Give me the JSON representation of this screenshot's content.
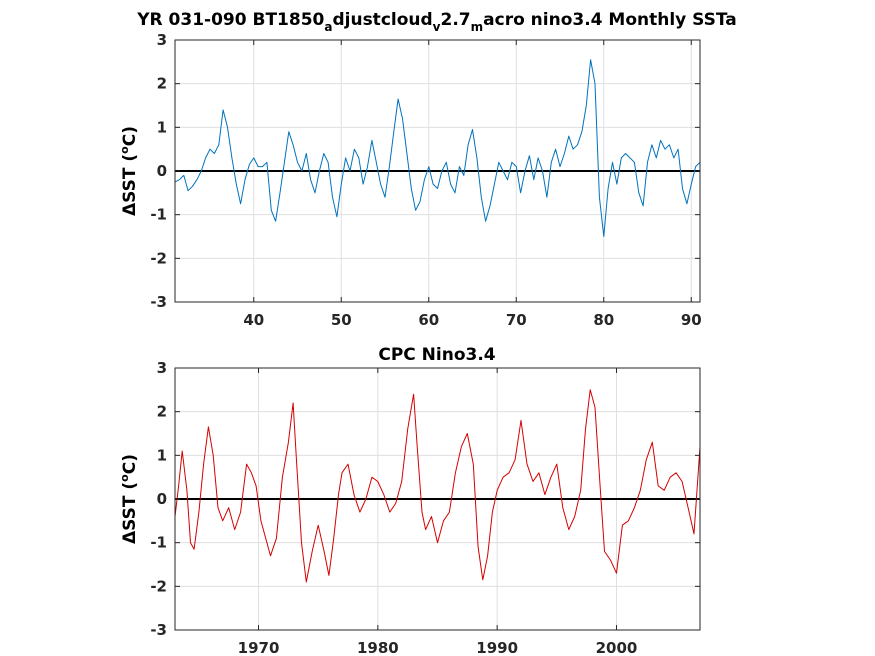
{
  "chart_data": [
    {
      "type": "line",
      "title": {
        "prefix": "YR 031-090 BT1850",
        "sub1": "a",
        "mid1": "djustcloud",
        "sub2": "v",
        "mid2": "2.7",
        "sub3": "m",
        "suffix": "acro nino3.4 Monthly SSTa"
      },
      "xlabel": "",
      "ylabel": "ΔSST (°C)",
      "ylabel_parts": [
        "ΔSST (",
        "o",
        "C)"
      ],
      "xlim": [
        31,
        91
      ],
      "ylim": [
        -3,
        3
      ],
      "xticks": [
        40,
        50,
        60,
        70,
        80,
        90
      ],
      "xtick_labels": [
        "40",
        "50",
        "60",
        "70",
        "80",
        "90"
      ],
      "yticks": [
        -3,
        -2,
        -1,
        0,
        1,
        2,
        3
      ],
      "ytick_labels": [
        "-3",
        "-2",
        "-1",
        "0",
        "1",
        "2",
        "3"
      ],
      "grid": true,
      "zero_line": true,
      "series": [
        {
          "color": "#0072bd",
          "x": [
            31.0,
            31.5,
            32.0,
            32.5,
            33.0,
            33.5,
            34.0,
            34.5,
            35.0,
            35.5,
            36.0,
            36.5,
            37.0,
            37.5,
            38.0,
            38.5,
            39.0,
            39.5,
            40.0,
            40.5,
            41.0,
            41.5,
            42.0,
            42.5,
            43.0,
            43.5,
            44.0,
            44.5,
            45.0,
            45.5,
            46.0,
            46.5,
            47.0,
            47.5,
            48.0,
            48.5,
            49.0,
            49.5,
            50.0,
            50.5,
            51.0,
            51.5,
            52.0,
            52.5,
            53.0,
            53.5,
            54.0,
            54.5,
            55.0,
            55.5,
            56.0,
            56.5,
            57.0,
            57.5,
            58.0,
            58.5,
            59.0,
            59.5,
            60.0,
            60.5,
            61.0,
            61.5,
            62.0,
            62.5,
            63.0,
            63.5,
            64.0,
            64.5,
            65.0,
            65.5,
            66.0,
            66.5,
            67.0,
            67.5,
            68.0,
            68.5,
            69.0,
            69.5,
            70.0,
            70.5,
            71.0,
            71.5,
            72.0,
            72.5,
            73.0,
            73.5,
            74.0,
            74.5,
            75.0,
            75.5,
            76.0,
            76.5,
            77.0,
            77.5,
            78.0,
            78.5,
            79.0,
            79.5,
            80.0,
            80.5,
            81.0,
            81.5,
            82.0,
            82.5,
            83.0,
            83.5,
            84.0,
            84.5,
            85.0,
            85.5,
            86.0,
            86.5,
            87.0,
            87.5,
            88.0,
            88.5,
            89.0,
            89.5,
            90.0,
            90.5,
            91.0
          ],
          "y": [
            -0.25,
            -0.2,
            -0.1,
            -0.45,
            -0.35,
            -0.2,
            0.0,
            0.3,
            0.5,
            0.4,
            0.6,
            1.4,
            1.0,
            0.3,
            -0.3,
            -0.75,
            -0.2,
            0.15,
            0.3,
            0.1,
            0.1,
            0.2,
            -0.9,
            -1.15,
            -0.5,
            0.2,
            0.9,
            0.6,
            0.2,
            0.0,
            0.4,
            -0.2,
            -0.5,
            0.0,
            0.4,
            0.2,
            -0.6,
            -1.05,
            -0.3,
            0.3,
            0.0,
            0.5,
            0.3,
            -0.3,
            0.1,
            0.7,
            0.2,
            -0.3,
            -0.6,
            0.1,
            0.9,
            1.65,
            1.2,
            0.4,
            -0.4,
            -0.9,
            -0.7,
            -0.2,
            0.1,
            -0.3,
            -0.4,
            0.0,
            0.2,
            -0.3,
            -0.5,
            0.1,
            -0.1,
            0.6,
            0.95,
            0.3,
            -0.6,
            -1.15,
            -0.8,
            -0.3,
            0.2,
            0.0,
            -0.2,
            0.2,
            0.1,
            -0.5,
            0.0,
            0.35,
            -0.2,
            0.3,
            0.0,
            -0.6,
            0.2,
            0.5,
            0.1,
            0.4,
            0.8,
            0.5,
            0.6,
            0.9,
            1.5,
            2.55,
            2.0,
            -0.6,
            -1.5,
            -0.4,
            0.2,
            -0.3,
            0.3,
            0.4,
            0.3,
            0.2,
            -0.5,
            -0.8,
            0.2,
            0.6,
            0.3,
            0.7,
            0.5,
            0.6,
            0.3,
            0.5,
            -0.4,
            -0.75,
            -0.3,
            0.1,
            0.2
          ]
        }
      ]
    },
    {
      "type": "line",
      "title": "CPC Nino3.4",
      "xlabel": "",
      "ylabel": "ΔSST (°C)",
      "ylabel_parts": [
        "ΔSST (",
        "o",
        "C)"
      ],
      "xlim": [
        1963,
        2007
      ],
      "ylim": [
        -3,
        3
      ],
      "xticks": [
        1970,
        1980,
        1990,
        2000
      ],
      "xtick_labels": [
        "1970",
        "1980",
        "1990",
        "2000"
      ],
      "yticks": [
        -3,
        -2,
        -1,
        0,
        1,
        2,
        3
      ],
      "ytick_labels": [
        "-3",
        "-2",
        "-1",
        "0",
        "1",
        "2",
        "3"
      ],
      "grid": true,
      "zero_line": true,
      "series": [
        {
          "color": "#d40000",
          "x": [
            1963.0,
            1963.3,
            1963.6,
            1964.0,
            1964.3,
            1964.6,
            1965.0,
            1965.4,
            1965.8,
            1966.2,
            1966.6,
            1967.0,
            1967.5,
            1968.0,
            1968.5,
            1969.0,
            1969.4,
            1969.8,
            1970.2,
            1970.6,
            1971.0,
            1971.5,
            1972.0,
            1972.5,
            1972.9,
            1973.2,
            1973.6,
            1974.0,
            1974.5,
            1975.0,
            1975.5,
            1975.9,
            1976.3,
            1976.7,
            1977.0,
            1977.5,
            1978.0,
            1978.5,
            1979.0,
            1979.5,
            1980.0,
            1980.5,
            1981.0,
            1981.5,
            1982.0,
            1982.5,
            1983.0,
            1983.3,
            1983.7,
            1984.0,
            1984.5,
            1985.0,
            1985.5,
            1986.0,
            1986.5,
            1987.0,
            1987.5,
            1988.0,
            1988.4,
            1988.8,
            1989.2,
            1989.6,
            1990.0,
            1990.5,
            1991.0,
            1991.5,
            1992.0,
            1992.5,
            1993.0,
            1993.5,
            1994.0,
            1994.5,
            1995.0,
            1995.5,
            1996.0,
            1996.5,
            1997.0,
            1997.4,
            1997.8,
            1998.2,
            1998.6,
            1999.0,
            1999.5,
            2000.0,
            2000.5,
            2001.0,
            2001.5,
            2002.0,
            2002.5,
            2003.0,
            2003.5,
            2004.0,
            2004.5,
            2005.0,
            2005.5,
            2006.0,
            2006.5,
            2007.0
          ],
          "y": [
            -0.4,
            0.3,
            1.1,
            0.2,
            -1.0,
            -1.15,
            -0.3,
            0.8,
            1.65,
            1.0,
            -0.2,
            -0.5,
            -0.2,
            -0.7,
            -0.3,
            0.8,
            0.6,
            0.3,
            -0.5,
            -0.9,
            -1.3,
            -0.9,
            0.5,
            1.3,
            2.2,
            0.8,
            -1.0,
            -1.9,
            -1.2,
            -0.6,
            -1.2,
            -1.75,
            -0.9,
            0.1,
            0.6,
            0.8,
            0.1,
            -0.3,
            0.0,
            0.5,
            0.4,
            0.1,
            -0.3,
            -0.1,
            0.4,
            1.6,
            2.4,
            1.2,
            -0.3,
            -0.7,
            -0.4,
            -1.0,
            -0.5,
            -0.3,
            0.6,
            1.2,
            1.5,
            0.8,
            -1.1,
            -1.85,
            -1.3,
            -0.3,
            0.2,
            0.5,
            0.6,
            0.9,
            1.8,
            0.8,
            0.4,
            0.6,
            0.1,
            0.5,
            0.8,
            -0.2,
            -0.7,
            -0.4,
            0.2,
            1.6,
            2.5,
            2.1,
            0.4,
            -1.2,
            -1.4,
            -1.7,
            -0.6,
            -0.5,
            -0.2,
            0.2,
            0.9,
            1.3,
            0.3,
            0.2,
            0.5,
            0.6,
            0.4,
            -0.2,
            -0.8,
            1.2
          ]
        }
      ]
    }
  ]
}
